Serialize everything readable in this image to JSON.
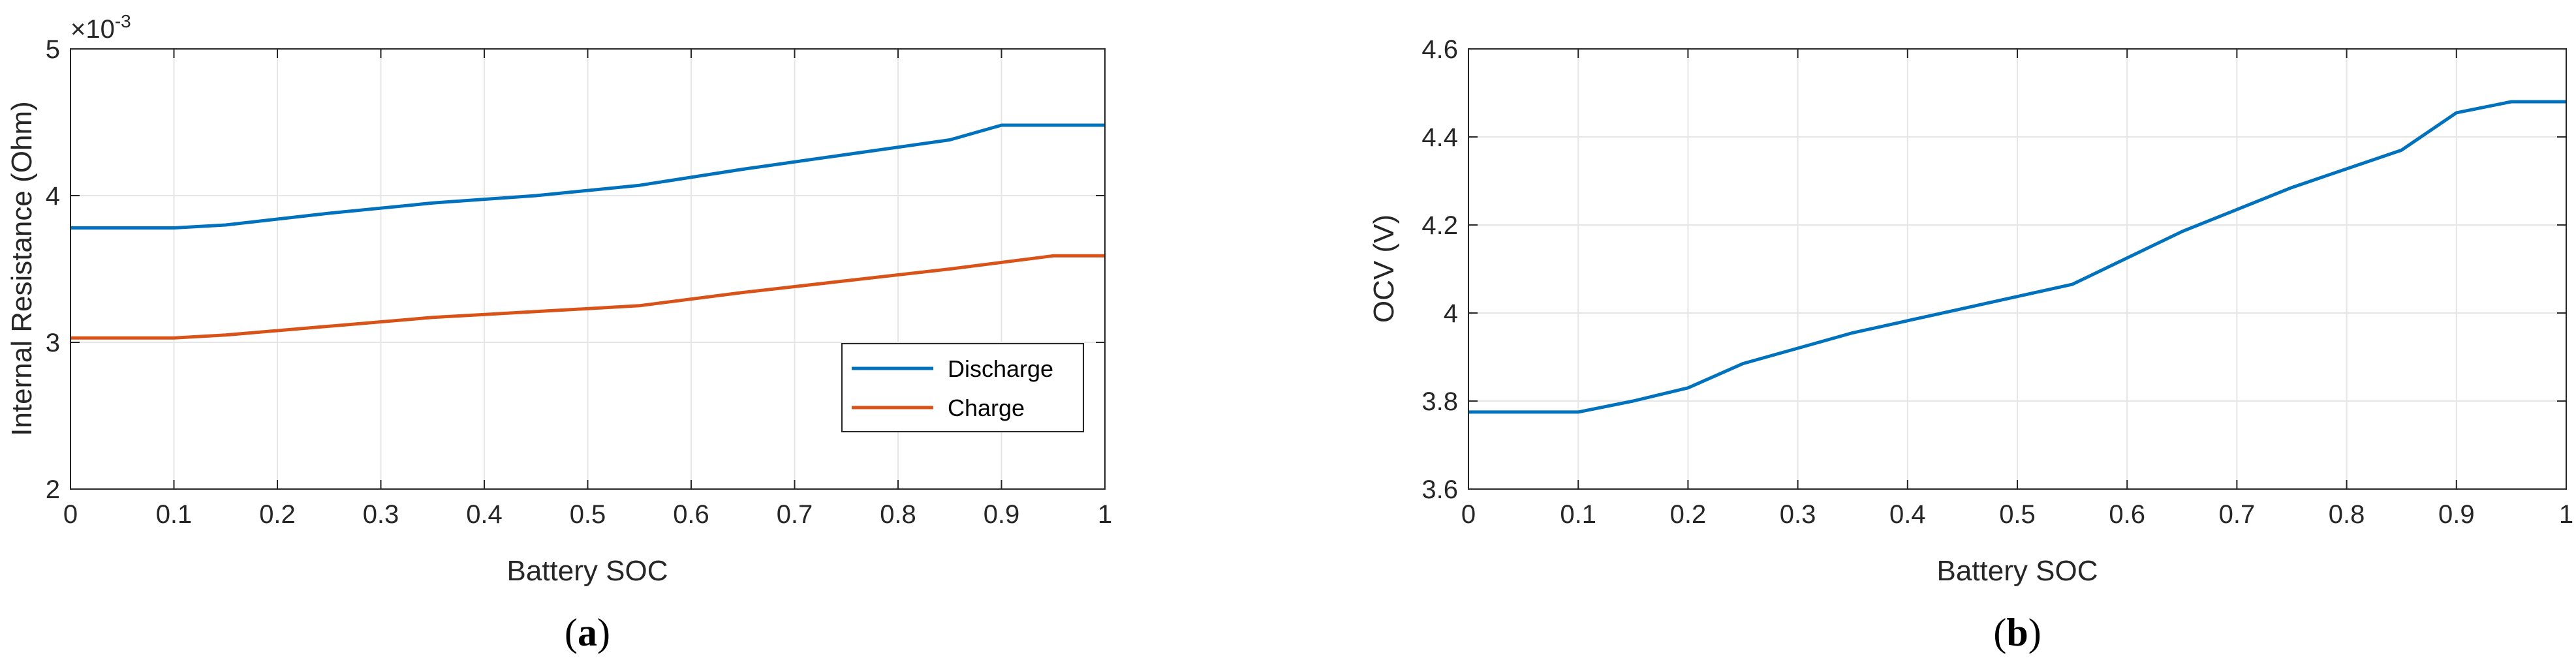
{
  "chart_data": [
    {
      "type": "line",
      "panel": "a",
      "caption": "(a)",
      "xlabel": "Battery SOC",
      "ylabel": "Internal Resistance (Ohm)",
      "y_multiplier": "×10",
      "y_multiplier_exp": "-3",
      "xlim": [
        0,
        1
      ],
      "ylim": [
        2,
        5
      ],
      "xticks": [
        "0",
        "0.1",
        "0.2",
        "0.3",
        "0.4",
        "0.5",
        "0.6",
        "0.7",
        "0.8",
        "0.9",
        "1"
      ],
      "yticks": [
        "2",
        "3",
        "4",
        "5"
      ],
      "grid": true,
      "legend_position": "bottom-right",
      "series": [
        {
          "name": "Discharge",
          "color": "#0072BD",
          "x": [
            0,
            0.1,
            0.15,
            0.2,
            0.25,
            0.35,
            0.45,
            0.55,
            0.65,
            0.75,
            0.85,
            0.9,
            1.0
          ],
          "y": [
            3.78,
            3.78,
            3.8,
            3.84,
            3.88,
            3.95,
            4.0,
            4.07,
            4.18,
            4.28,
            4.38,
            4.48,
            4.48
          ]
        },
        {
          "name": "Charge",
          "color": "#D95319",
          "x": [
            0,
            0.1,
            0.15,
            0.2,
            0.25,
            0.35,
            0.45,
            0.55,
            0.65,
            0.75,
            0.85,
            0.95,
            1.0
          ],
          "y": [
            3.03,
            3.03,
            3.05,
            3.08,
            3.11,
            3.17,
            3.21,
            3.25,
            3.34,
            3.42,
            3.5,
            3.59,
            3.59
          ]
        }
      ]
    },
    {
      "type": "line",
      "panel": "b",
      "caption": "(b)",
      "xlabel": "Battery SOC",
      "ylabel": "OCV (V)",
      "xlim": [
        0,
        1
      ],
      "ylim": [
        3.6,
        4.6
      ],
      "xticks": [
        "0",
        "0.1",
        "0.2",
        "0.3",
        "0.4",
        "0.5",
        "0.6",
        "0.7",
        "0.8",
        "0.9",
        "1"
      ],
      "yticks": [
        "3.6",
        "3.8",
        "4",
        "4.2",
        "4.4",
        "4.6"
      ],
      "grid": true,
      "series": [
        {
          "color": "#0072BD",
          "x": [
            0,
            0.1,
            0.15,
            0.2,
            0.25,
            0.35,
            0.45,
            0.55,
            0.65,
            0.75,
            0.85,
            0.9,
            0.95,
            1.0
          ],
          "y": [
            3.775,
            3.775,
            3.8,
            3.83,
            3.885,
            3.955,
            4.01,
            4.065,
            4.185,
            4.285,
            4.37,
            4.455,
            4.48,
            4.48
          ]
        }
      ]
    }
  ]
}
